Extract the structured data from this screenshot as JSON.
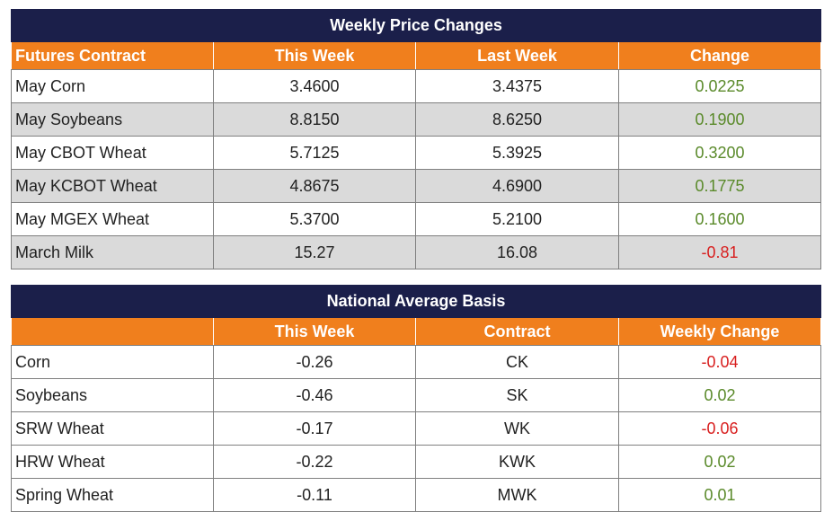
{
  "price_table": {
    "title": "Weekly Price Changes",
    "headers": [
      "Futures Contract",
      "This Week",
      "Last Week",
      "Change"
    ],
    "rows": [
      [
        "May Corn",
        "3.4600",
        "3.4375",
        "0.0225"
      ],
      [
        "May Soybeans",
        "8.8150",
        "8.6250",
        "0.1900"
      ],
      [
        "May CBOT Wheat",
        "5.7125",
        "5.3925",
        "0.3200"
      ],
      [
        "May KCBOT Wheat",
        "4.8675",
        "4.6900",
        "0.1775"
      ],
      [
        "May MGEX Wheat",
        "5.3700",
        "5.2100",
        "0.1600"
      ],
      [
        "March Milk",
        "15.27",
        "16.08",
        "-0.81"
      ]
    ]
  },
  "basis_table": {
    "title": "National Average Basis",
    "headers": [
      "",
      "This Week",
      "Contract",
      "Weekly Change"
    ],
    "rows": [
      [
        "Corn",
        "-0.26",
        "CK",
        "-0.04"
      ],
      [
        "Soybeans",
        "-0.46",
        "SK",
        "0.02"
      ],
      [
        "SRW Wheat",
        "-0.17",
        "WK",
        "-0.06"
      ],
      [
        "HRW Wheat",
        "-0.22",
        "KWK",
        "0.02"
      ],
      [
        "Spring Wheat",
        "-0.11",
        "MWK",
        "0.01"
      ]
    ]
  },
  "colors": {
    "title_bg": "#1b1f4a",
    "header_bg": "#f07f1d",
    "alt_row_bg": "#dadada",
    "positive": "#5a8a2a",
    "negative": "#d81f1f"
  }
}
